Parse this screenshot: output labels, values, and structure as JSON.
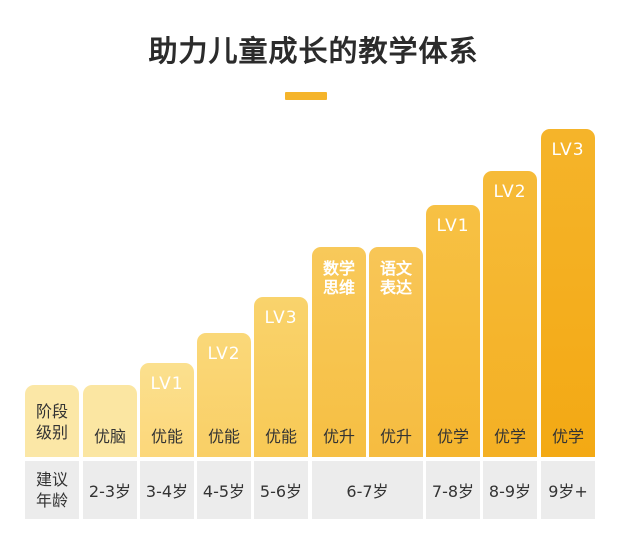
{
  "title": "助力儿童成长的教学体系",
  "colors": {
    "accent": "#f5b42a",
    "light": "#fbe7a6",
    "dark": "#f4ac18",
    "row": "#ececec"
  },
  "header": {
    "level_label": [
      "阶段",
      "级别"
    ],
    "age_label": [
      "建议",
      "年龄"
    ]
  },
  "columns": [
    {
      "program": "优脑",
      "level": "",
      "age": "2-3岁"
    },
    {
      "program": "优能",
      "level": "LV1",
      "age": "3-4岁"
    },
    {
      "program": "优能",
      "level": "LV2",
      "age": "4-5岁"
    },
    {
      "program": "优能",
      "level": "LV3",
      "age": "5-6岁"
    },
    {
      "program": "优升",
      "level": "数学思维",
      "age": "6-7岁"
    },
    {
      "program": "优升",
      "level": "语文表达",
      "age": "6-7岁"
    },
    {
      "program": "优学",
      "level": "LV1",
      "age": "7-8岁"
    },
    {
      "program": "优学",
      "level": "LV2",
      "age": "8-9岁"
    },
    {
      "program": "优学",
      "level": "LV3",
      "age": "9岁+"
    }
  ]
}
